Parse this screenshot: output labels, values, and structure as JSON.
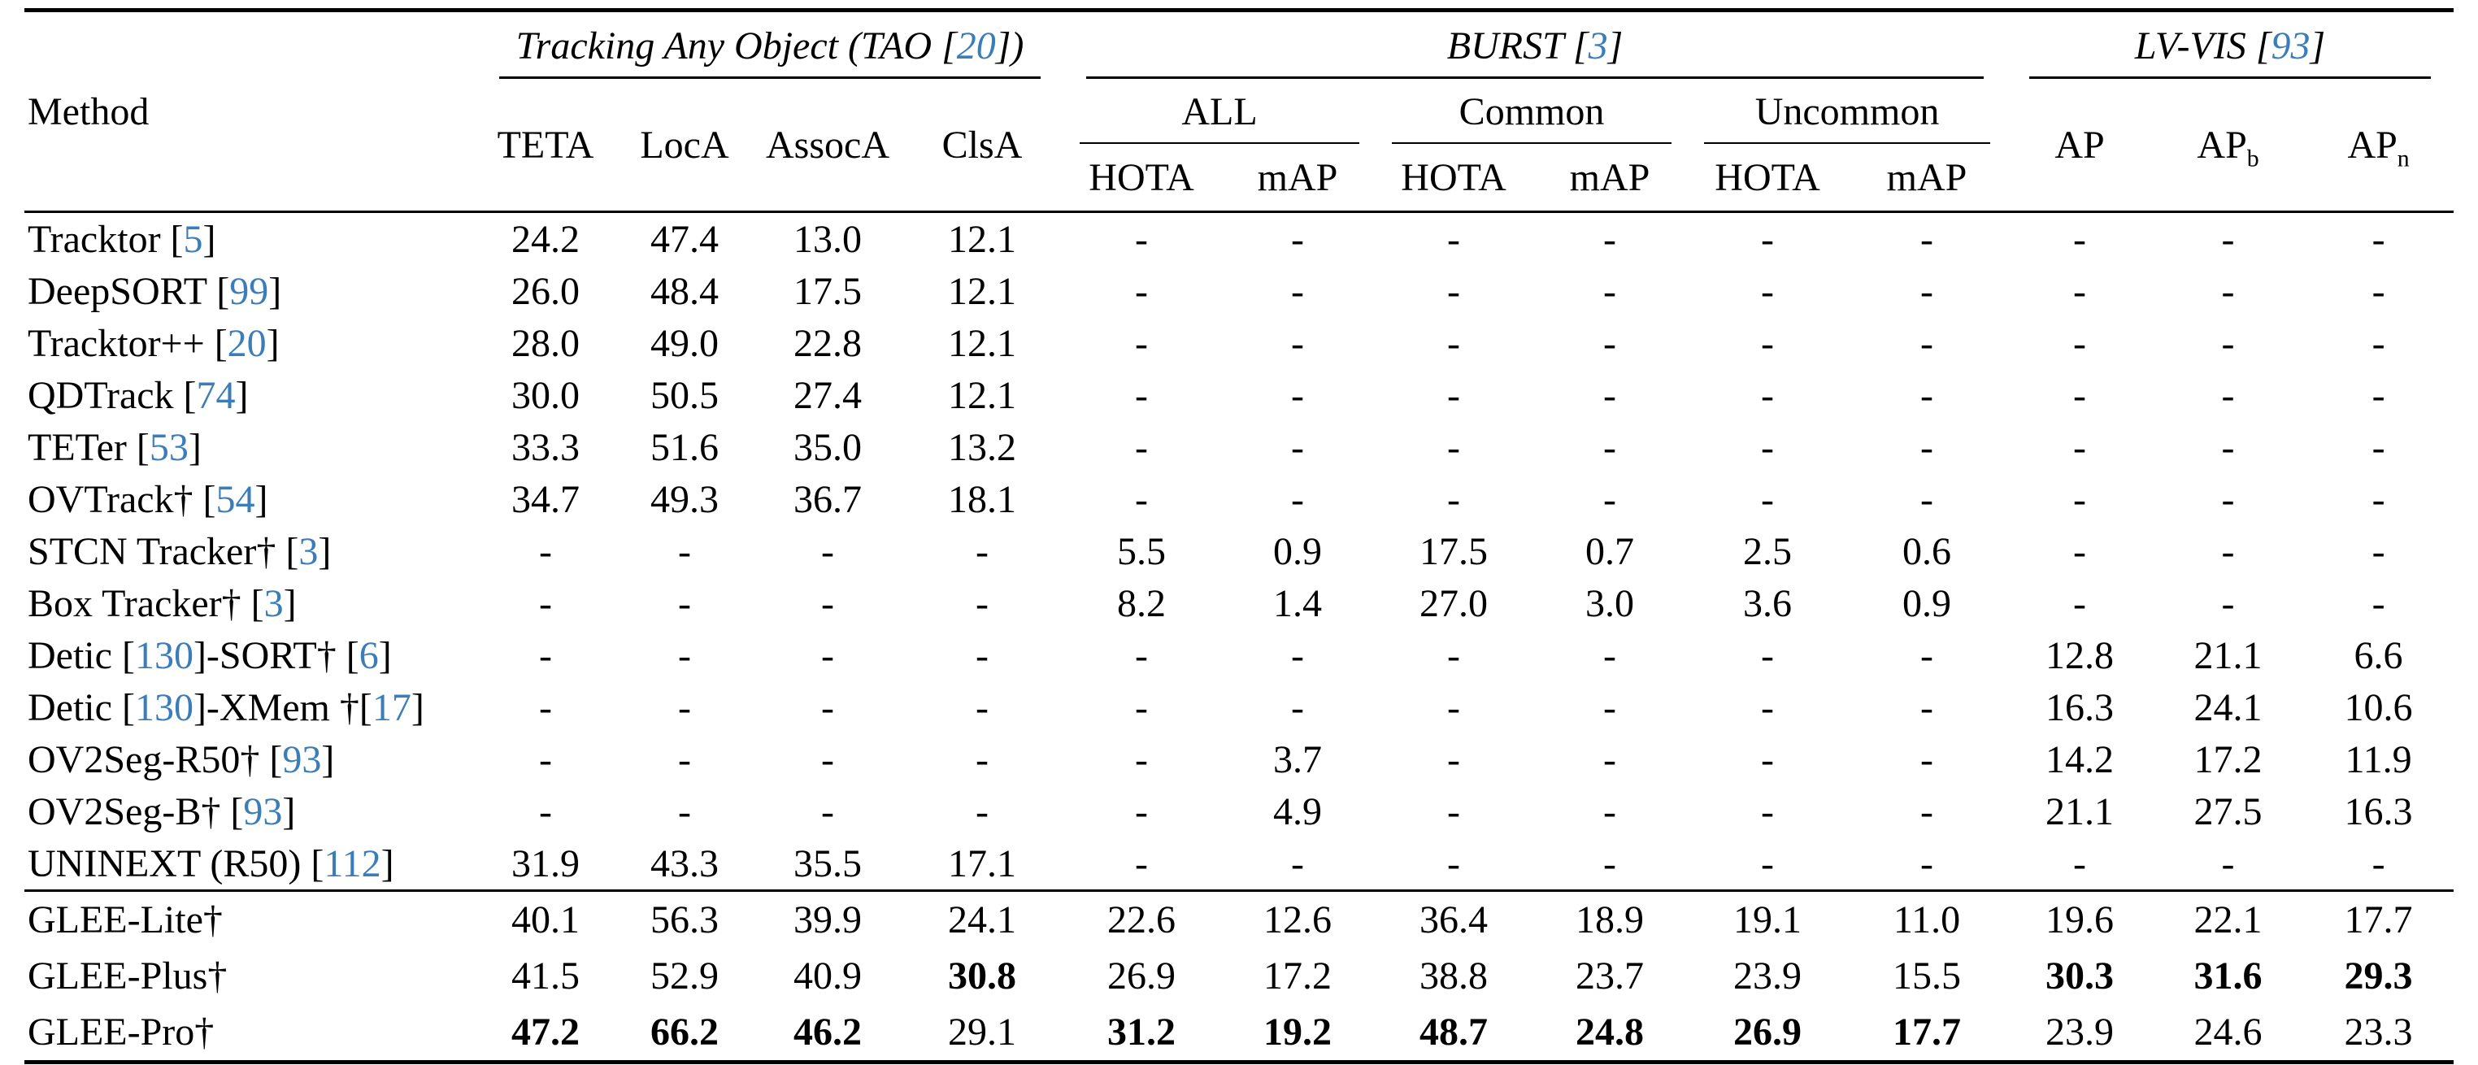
{
  "colors": {
    "citation": "#3b7cba"
  },
  "table": {
    "header": {
      "method": "Method",
      "tao": {
        "prefix": "Tracking Any Object (TAO [",
        "cite": "20",
        "suffix": "])"
      },
      "burst": {
        "prefix": "BURST [",
        "cite": "3",
        "suffix": "]"
      },
      "lvvis": {
        "prefix": "LV-VIS [",
        "cite": "93",
        "suffix": "]"
      },
      "tao_cols": [
        "TETA",
        "LocA",
        "AssocA",
        "ClsA"
      ],
      "burst_groups": [
        "ALL",
        "Common",
        "Uncommon"
      ],
      "burst_cols": [
        "HOTA",
        "mAP"
      ],
      "lvvis_cols": [
        {
          "base": "AP",
          "sub": ""
        },
        {
          "base": "AP",
          "sub": "b"
        },
        {
          "base": "AP",
          "sub": "n"
        }
      ]
    },
    "rows": [
      {
        "g": 1,
        "method": [
          {
            "text": "Tracktor [",
            "link": false
          },
          {
            "text": "5",
            "link": true
          },
          {
            "text": "]",
            "link": false
          }
        ],
        "cells": [
          "24.2",
          "47.4",
          "13.0",
          "12.1",
          "-",
          "-",
          "-",
          "-",
          "-",
          "-",
          "-",
          "-",
          "-"
        ],
        "bold": []
      },
      {
        "g": 1,
        "method": [
          {
            "text": "DeepSORT [",
            "link": false
          },
          {
            "text": "99",
            "link": true
          },
          {
            "text": "]",
            "link": false
          }
        ],
        "cells": [
          "26.0",
          "48.4",
          "17.5",
          "12.1",
          "-",
          "-",
          "-",
          "-",
          "-",
          "-",
          "-",
          "-",
          "-"
        ],
        "bold": []
      },
      {
        "g": 1,
        "method": [
          {
            "text": "Tracktor++ [",
            "link": false
          },
          {
            "text": "20",
            "link": true
          },
          {
            "text": "]",
            "link": false
          }
        ],
        "cells": [
          "28.0",
          "49.0",
          "22.8",
          "12.1",
          "-",
          "-",
          "-",
          "-",
          "-",
          "-",
          "-",
          "-",
          "-"
        ],
        "bold": []
      },
      {
        "g": 1,
        "method": [
          {
            "text": "QDTrack [",
            "link": false
          },
          {
            "text": "74",
            "link": true
          },
          {
            "text": "]",
            "link": false
          }
        ],
        "cells": [
          "30.0",
          "50.5",
          "27.4",
          "12.1",
          "-",
          "-",
          "-",
          "-",
          "-",
          "-",
          "-",
          "-",
          "-"
        ],
        "bold": []
      },
      {
        "g": 1,
        "method": [
          {
            "text": "TETer [",
            "link": false
          },
          {
            "text": "53",
            "link": true
          },
          {
            "text": "]",
            "link": false
          }
        ],
        "cells": [
          "33.3",
          "51.6",
          "35.0",
          "13.2",
          "-",
          "-",
          "-",
          "-",
          "-",
          "-",
          "-",
          "-",
          "-"
        ],
        "bold": []
      },
      {
        "g": 1,
        "method": [
          {
            "text": "OVTrack†  [",
            "link": false
          },
          {
            "text": "54",
            "link": true
          },
          {
            "text": "]",
            "link": false
          }
        ],
        "cells": [
          "34.7",
          "49.3",
          "36.7",
          "18.1",
          "-",
          "-",
          "-",
          "-",
          "-",
          "-",
          "-",
          "-",
          "-"
        ],
        "bold": []
      },
      {
        "g": 1,
        "method": [
          {
            "text": "STCN Tracker† [",
            "link": false
          },
          {
            "text": "3",
            "link": true
          },
          {
            "text": "]",
            "link": false
          }
        ],
        "cells": [
          "-",
          "-",
          "-",
          "-",
          "5.5",
          "0.9",
          "17.5",
          "0.7",
          "2.5",
          "0.6",
          "-",
          "-",
          "-"
        ],
        "bold": []
      },
      {
        "g": 1,
        "method": [
          {
            "text": "Box Tracker† [",
            "link": false
          },
          {
            "text": "3",
            "link": true
          },
          {
            "text": "]",
            "link": false
          }
        ],
        "cells": [
          "-",
          "-",
          "-",
          "-",
          "8.2",
          "1.4",
          "27.0",
          "3.0",
          "3.6",
          "0.9",
          "-",
          "-",
          "-"
        ],
        "bold": []
      },
      {
        "g": 1,
        "method": [
          {
            "text": "Detic [",
            "link": false
          },
          {
            "text": "130",
            "link": true
          },
          {
            "text": "]-SORT† [",
            "link": false
          },
          {
            "text": "6",
            "link": true
          },
          {
            "text": "]",
            "link": false
          }
        ],
        "cells": [
          "-",
          "-",
          "-",
          "-",
          "-",
          "-",
          "-",
          "-",
          "-",
          "-",
          "12.8",
          "21.1",
          "6.6"
        ],
        "bold": []
      },
      {
        "g": 1,
        "method": [
          {
            "text": "Detic [",
            "link": false
          },
          {
            "text": "130",
            "link": true
          },
          {
            "text": "]-XMem †[",
            "link": false
          },
          {
            "text": "17",
            "link": true
          },
          {
            "text": "]",
            "link": false
          }
        ],
        "cells": [
          "-",
          "-",
          "-",
          "-",
          "-",
          "-",
          "-",
          "-",
          "-",
          "-",
          "16.3",
          "24.1",
          "10.6"
        ],
        "bold": []
      },
      {
        "g": 1,
        "method": [
          {
            "text": "OV2Seg-R50† [",
            "link": false
          },
          {
            "text": "93",
            "link": true
          },
          {
            "text": "]",
            "link": false
          }
        ],
        "cells": [
          "-",
          "-",
          "-",
          "-",
          "-",
          "3.7",
          "-",
          "-",
          "-",
          "-",
          "14.2",
          "17.2",
          "11.9"
        ],
        "bold": []
      },
      {
        "g": 1,
        "method": [
          {
            "text": "OV2Seg-B† [",
            "link": false
          },
          {
            "text": "93",
            "link": true
          },
          {
            "text": "]",
            "link": false
          }
        ],
        "cells": [
          "-",
          "-",
          "-",
          "-",
          "-",
          "4.9",
          "-",
          "-",
          "-",
          "-",
          "21.1",
          "27.5",
          "16.3"
        ],
        "bold": []
      },
      {
        "g": 1,
        "method": [
          {
            "text": "UNINEXT (R50) [",
            "link": false
          },
          {
            "text": "112",
            "link": true
          },
          {
            "text": "]",
            "link": false
          }
        ],
        "cells": [
          "31.9",
          "43.3",
          "35.5",
          "17.1",
          "-",
          "-",
          "-",
          "-",
          "-",
          "-",
          "-",
          "-",
          "-"
        ],
        "bold": []
      },
      {
        "g": 2,
        "method": [
          {
            "text": "GLEE-Lite†",
            "link": false
          }
        ],
        "cells": [
          "40.1",
          "56.3",
          "39.9",
          "24.1",
          "22.6",
          "12.6",
          "36.4",
          "18.9",
          "19.1",
          "11.0",
          "19.6",
          "22.1",
          "17.7"
        ],
        "bold": []
      },
      {
        "g": 2,
        "method": [
          {
            "text": "GLEE-Plus†",
            "link": false
          }
        ],
        "cells": [
          "41.5",
          "52.9",
          "40.9",
          "30.8",
          "26.9",
          "17.2",
          "38.8",
          "23.7",
          "23.9",
          "15.5",
          "30.3",
          "31.6",
          "29.3"
        ],
        "bold": [
          3,
          10,
          11,
          12
        ]
      },
      {
        "g": 2,
        "method": [
          {
            "text": "GLEE-Pro†",
            "link": false
          }
        ],
        "cells": [
          "47.2",
          "66.2",
          "46.2",
          "29.1",
          "31.2",
          "19.2",
          "48.7",
          "24.8",
          "26.9",
          "17.7",
          "23.9",
          "24.6",
          "23.3"
        ],
        "bold": [
          0,
          1,
          2,
          4,
          5,
          6,
          7,
          8,
          9
        ]
      }
    ]
  }
}
